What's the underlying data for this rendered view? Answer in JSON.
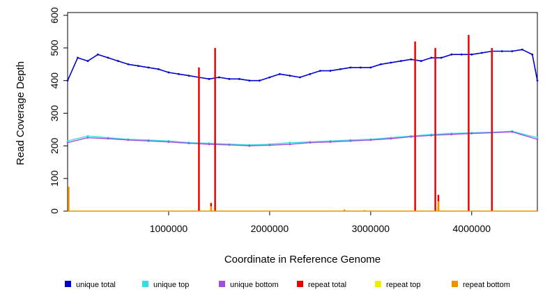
{
  "chart_data": {
    "type": "line",
    "xlabel": "Coordinate in Reference Genome",
    "ylabel": "Read Coverage Depth",
    "xlim": [
      0,
      4650000
    ],
    "ylim": [
      0,
      600
    ],
    "xticks": [
      1000000,
      2000000,
      3000000,
      4000000
    ],
    "xtick_labels": [
      "1000000",
      "2000000",
      "3000000",
      "4000000"
    ],
    "yticks": [
      0,
      100,
      200,
      300,
      400,
      500,
      600
    ],
    "ytick_labels": [
      "0",
      "100",
      "200",
      "300",
      "400",
      "500",
      "600"
    ],
    "grid": false,
    "legend_position": "bottom",
    "series": [
      {
        "name": "unique total",
        "color": "#0000cc",
        "x": [
          0,
          100000,
          200000,
          300000,
          400000,
          500000,
          600000,
          700000,
          800000,
          900000,
          1000000,
          1100000,
          1200000,
          1300000,
          1400000,
          1500000,
          1600000,
          1700000,
          1800000,
          1900000,
          2000000,
          2100000,
          2200000,
          2300000,
          2400000,
          2500000,
          2600000,
          2700000,
          2800000,
          2900000,
          3000000,
          3100000,
          3200000,
          3300000,
          3400000,
          3500000,
          3600000,
          3700000,
          3800000,
          3900000,
          4000000,
          4100000,
          4200000,
          4300000,
          4400000,
          4500000,
          4600000,
          4650000
        ],
        "values": [
          400,
          470,
          460,
          480,
          470,
          460,
          450,
          445,
          440,
          435,
          425,
          420,
          415,
          410,
          405,
          410,
          405,
          405,
          400,
          400,
          410,
          420,
          415,
          410,
          420,
          430,
          430,
          435,
          440,
          440,
          440,
          450,
          455,
          460,
          465,
          460,
          470,
          470,
          480,
          480,
          480,
          485,
          490,
          490,
          490,
          495,
          480,
          400
        ]
      },
      {
        "name": "unique top",
        "color": "#33e0e0",
        "x": [
          0,
          200000,
          400000,
          600000,
          800000,
          1000000,
          1200000,
          1400000,
          1600000,
          1800000,
          2000000,
          2200000,
          2400000,
          2600000,
          2800000,
          3000000,
          3200000,
          3400000,
          3600000,
          3800000,
          4000000,
          4200000,
          4400000,
          4650000
        ],
        "values": [
          215,
          230,
          225,
          220,
          218,
          215,
          210,
          208,
          205,
          203,
          205,
          210,
          212,
          215,
          218,
          220,
          225,
          230,
          235,
          238,
          240,
          242,
          245,
          225
        ]
      },
      {
        "name": "unique bottom",
        "color": "#a050e0",
        "x": [
          0,
          200000,
          400000,
          600000,
          800000,
          1000000,
          1200000,
          1400000,
          1600000,
          1800000,
          2000000,
          2200000,
          2400000,
          2600000,
          2800000,
          3000000,
          3200000,
          3400000,
          3600000,
          3800000,
          4000000,
          4200000,
          4400000,
          4650000
        ],
        "values": [
          210,
          225,
          222,
          218,
          215,
          212,
          208,
          205,
          203,
          200,
          202,
          205,
          210,
          212,
          215,
          218,
          222,
          228,
          232,
          235,
          238,
          240,
          243,
          220
        ]
      },
      {
        "name": "repeat total",
        "color": "#ee0000",
        "x": [
          1300000,
          1420000,
          1460000,
          3440000,
          3640000,
          3670000,
          3970000,
          4200000
        ],
        "values": [
          440,
          25,
          500,
          520,
          500,
          50,
          540,
          500
        ]
      },
      {
        "name": "repeat top",
        "color": "#eeee00",
        "x": [
          1420000,
          3670000
        ],
        "values": [
          15,
          30
        ]
      },
      {
        "name": "repeat bottom",
        "color": "#f09000",
        "x": [
          10000,
          1420000,
          2740000,
          2940000,
          3670000
        ],
        "values": [
          75,
          15,
          5,
          3,
          30
        ]
      }
    ]
  }
}
